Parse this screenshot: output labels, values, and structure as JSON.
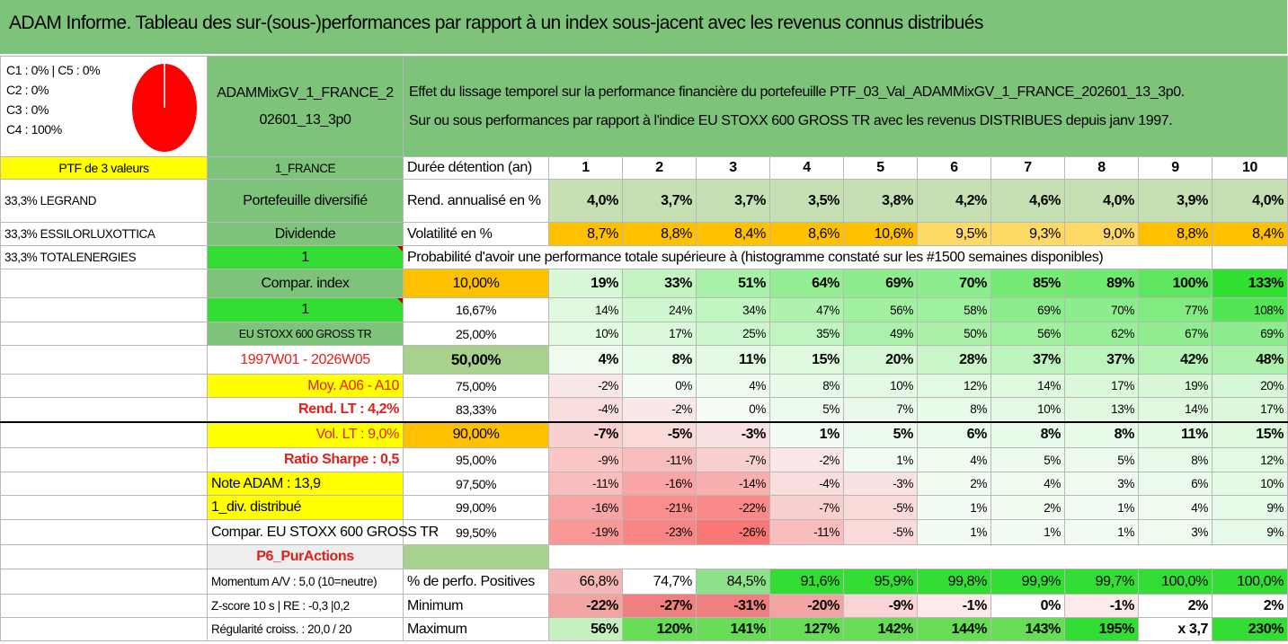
{
  "title": "ADAM Informe. Tableau des sur-(sous-)performances par rapport à un index sous-jacent avec les revenus connus distribués",
  "classes": [
    "C1 : 0% | C5 : 0%",
    "C2 : 0%",
    "C3 : 0%",
    "C4 : 100%"
  ],
  "portfolio_code": "ADAMMixGV_1_FRANCE_202601_13_3p0",
  "portfolio_code_lines": [
    "ADAMMixGV_1_FRANCE_2",
    "02601_13_3p0"
  ],
  "description": [
    "Effet du lissage temporel sur la performance financière du portefeuille PTF_03_Val_ADAMMixGV_1_FRANCE_202601_13_3p0.",
    "Sur ou sous performances par rapport à l'indice EU STOXX 600 GROSS TR avec les revenus DISTRIBUES depuis janv 1997."
  ],
  "left": {
    "ptf_label": "PTF de 3 valeurs",
    "holdings": [
      "33,3% LEGRAND",
      "33,3% ESSILORLUXOTTICA",
      "33,3% TOTALENERGIES"
    ]
  },
  "side": {
    "country": "1_FRANCE",
    "type": "Portefeuille diversifié",
    "dividend_label": "Dividende",
    "dividend_value": "1",
    "compar_index_label": "Compar. index",
    "compar_index_value": "1",
    "index_name": "EU STOXX 600 GROSS TR",
    "period": "1997W01 - 2026W05",
    "moy": "Moy. A06 - A10",
    "rend_lt": "Rend. LT : 4,2%",
    "vol_lt": "Vol. LT : 9,0%",
    "sharpe": "Ratio Sharpe : 0,5",
    "note": "Note ADAM : 13,9",
    "div": "1_div. distribué",
    "compar": "Compar. EU STOXX 600 GROSS TR",
    "p6": "P6_PurActions",
    "momentum": "Momentum A/V : 5,0 (10=neutre)",
    "zscore": "Z-score 10 s | RE : -0,3 |0,2",
    "regularite": "Régularité croiss. : 20,0 / 20"
  },
  "table": {
    "holding_label": "Durée détention (an)",
    "years": [
      "1",
      "2",
      "3",
      "4",
      "5",
      "6",
      "7",
      "8",
      "9",
      "10"
    ],
    "rend_label": "Rend. annualisé en %",
    "rend": [
      "4,0%",
      "3,7%",
      "3,7%",
      "3,5%",
      "3,8%",
      "4,2%",
      "4,6%",
      "4,0%",
      "3,9%",
      "4,0%"
    ],
    "vol_label": "Volatilité en %",
    "vol": [
      "8,7%",
      "8,8%",
      "8,4%",
      "8,6%",
      "10,6%",
      "9,5%",
      "9,3%",
      "9,0%",
      "8,8%",
      "8,4%"
    ],
    "prob_title": "Probabilité d'avoir une performance totale supérieure à (histogramme constaté sur les #1500 semaines disponibles)",
    "quantiles": [
      {
        "p": "10,00%",
        "v": [
          "19%",
          "33%",
          "51%",
          "64%",
          "69%",
          "70%",
          "85%",
          "89%",
          "100%",
          "133%"
        ]
      },
      {
        "p": "16,67%",
        "v": [
          "14%",
          "24%",
          "34%",
          "47%",
          "56%",
          "58%",
          "69%",
          "70%",
          "77%",
          "108%"
        ]
      },
      {
        "p": "25,00%",
        "v": [
          "10%",
          "17%",
          "25%",
          "35%",
          "49%",
          "50%",
          "56%",
          "62%",
          "67%",
          "69%"
        ]
      },
      {
        "p": "50,00%",
        "v": [
          "4%",
          "8%",
          "11%",
          "15%",
          "20%",
          "28%",
          "37%",
          "37%",
          "42%",
          "48%"
        ]
      },
      {
        "p": "75,00%",
        "v": [
          "-2%",
          "0%",
          "4%",
          "8%",
          "10%",
          "12%",
          "14%",
          "17%",
          "19%",
          "20%"
        ]
      },
      {
        "p": "83,33%",
        "v": [
          "-4%",
          "-2%",
          "0%",
          "5%",
          "7%",
          "8%",
          "10%",
          "13%",
          "14%",
          "17%"
        ]
      },
      {
        "p": "90,00%",
        "v": [
          "-7%",
          "-5%",
          "-3%",
          "1%",
          "5%",
          "6%",
          "8%",
          "8%",
          "11%",
          "15%"
        ]
      },
      {
        "p": "95,00%",
        "v": [
          "-9%",
          "-11%",
          "-7%",
          "-2%",
          "1%",
          "4%",
          "5%",
          "5%",
          "8%",
          "12%"
        ]
      },
      {
        "p": "97,50%",
        "v": [
          "-11%",
          "-16%",
          "-14%",
          "-4%",
          "-3%",
          "2%",
          "4%",
          "3%",
          "6%",
          "10%"
        ]
      },
      {
        "p": "99,00%",
        "v": [
          "-16%",
          "-21%",
          "-22%",
          "-7%",
          "-5%",
          "1%",
          "2%",
          "1%",
          "4%",
          "9%"
        ]
      },
      {
        "p": "99,50%",
        "v": [
          "-19%",
          "-23%",
          "-26%",
          "-11%",
          "-5%",
          "1%",
          "1%",
          "1%",
          "3%",
          "9%"
        ]
      }
    ],
    "pos_label": "% de perfo. Positives",
    "pos": [
      "66,8%",
      "74,7%",
      "84,5%",
      "91,6%",
      "95,9%",
      "99,8%",
      "99,9%",
      "99,7%",
      "100,0%",
      "100,0%"
    ],
    "min_label": "Minimum",
    "min": [
      "-22%",
      "-27%",
      "-31%",
      "-20%",
      "-9%",
      "-1%",
      "0%",
      "-1%",
      "2%",
      "2%"
    ],
    "max_label": "Maximum",
    "max": [
      "56%",
      "120%",
      "141%",
      "127%",
      "142%",
      "144%",
      "143%",
      "195%",
      "x 3,7",
      "230%"
    ]
  },
  "colors": {
    "title_bg": "#7dc37a",
    "yellow": "#ffff00",
    "orange": "#ffc000",
    "bright_green": "#33dd33",
    "red_text": "#e0201b",
    "pie_fill": "#ff0000"
  }
}
